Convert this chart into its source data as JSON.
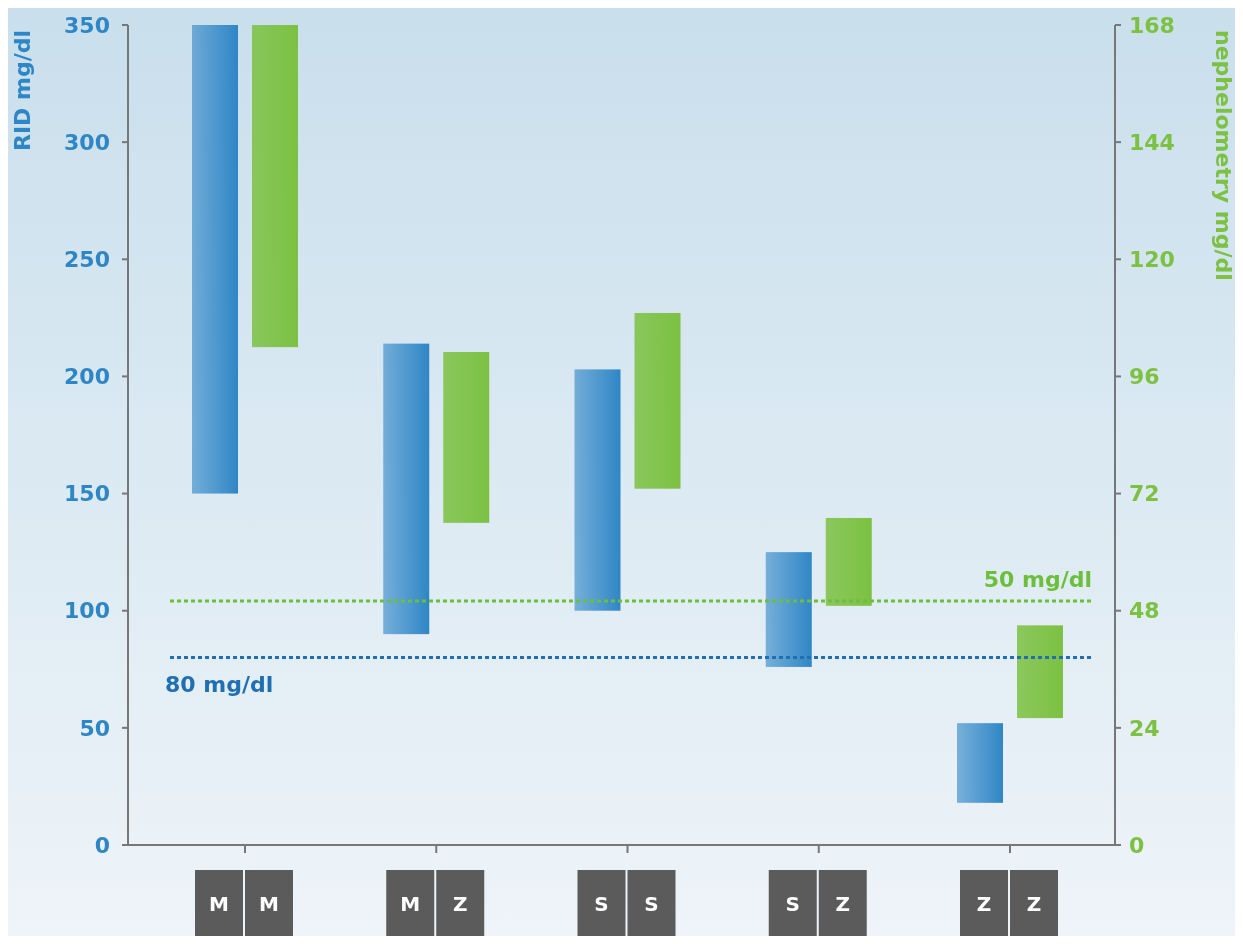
{
  "chart_data": {
    "type": "bar",
    "categories": [
      "M M",
      "M Z",
      "S S",
      "S Z",
      "Z Z"
    ],
    "ylabel": "RID mg/dl",
    "y2label": "nephelometry mg/dl",
    "ylim": [
      0,
      350
    ],
    "yticks": [
      0,
      50,
      100,
      150,
      200,
      250,
      300,
      350
    ],
    "y2lim": [
      0,
      168
    ],
    "y2ticks": [
      0,
      24,
      48,
      72,
      96,
      120,
      144,
      168
    ],
    "series": [
      {
        "color": "#2f86c6",
        "base": [
          150,
          90,
          100,
          76,
          18
        ],
        "values": [
          200,
          124,
          103,
          49,
          34
        ]
      },
      {
        "color": "#7cc142",
        "axis": "y2",
        "base": [
          102,
          66,
          73,
          49,
          26
        ],
        "values": [
          66,
          35,
          36,
          18,
          19
        ]
      }
    ],
    "ref_lines": [
      {
        "axis": "y",
        "value": 80,
        "label": "80 mg/dl",
        "color": "#1f6fb2",
        "line_style": "dotted"
      },
      {
        "axis": "y2",
        "value": 50,
        "label": "50 mg/dl",
        "color": "#6bbf3a",
        "line_style": "dotted"
      }
    ],
    "grid": false
  }
}
